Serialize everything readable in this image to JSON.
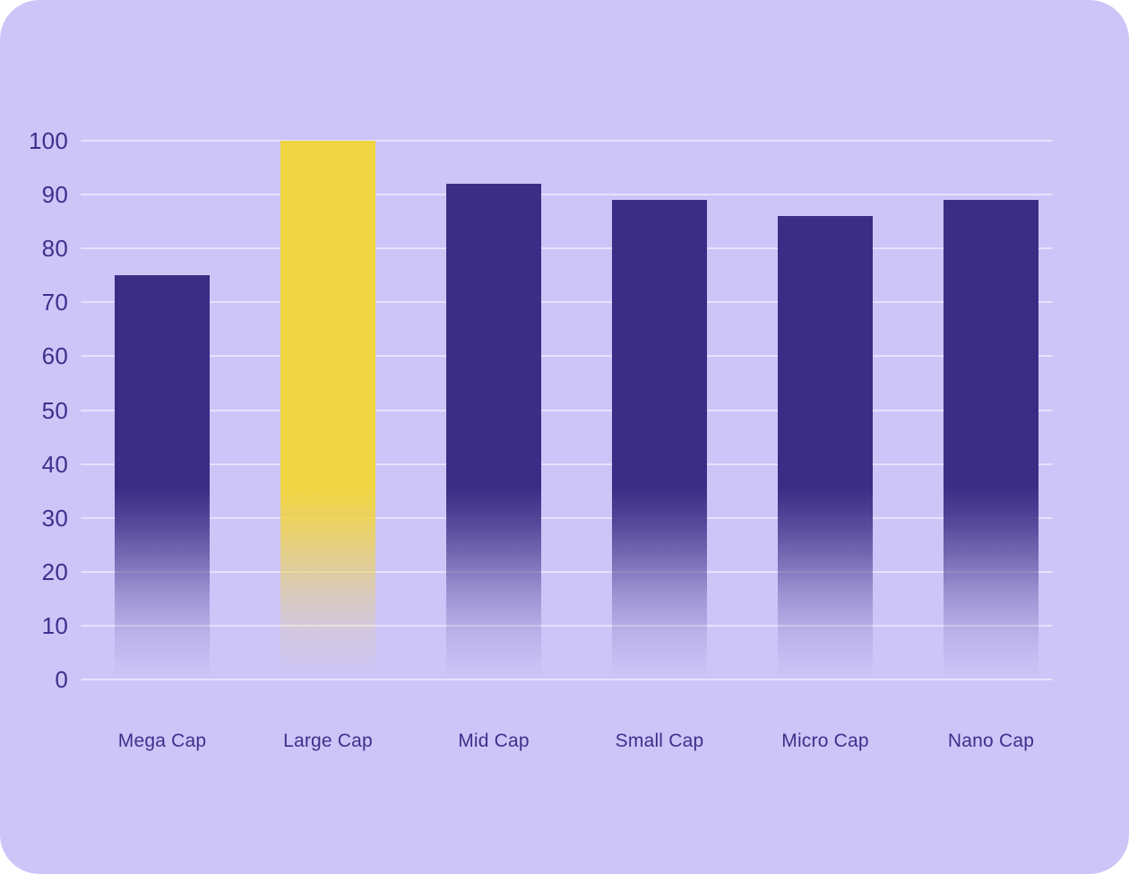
{
  "chart_data": {
    "type": "bar",
    "categories": [
      "Mega Cap",
      "Large Cap",
      "Mid Cap",
      "Small Cap",
      "Micro Cap",
      "Nano Cap"
    ],
    "values": [
      75,
      100,
      92,
      89,
      86,
      89
    ],
    "highlight_index": 1,
    "title": "",
    "xlabel": "",
    "ylabel": "",
    "ylim": [
      0,
      100
    ],
    "ytick_step": 10,
    "ytick_labels": [
      "0",
      "10",
      "20",
      "30",
      "40",
      "50",
      "60",
      "70",
      "80",
      "90",
      "100"
    ],
    "grid": true,
    "legend": "none",
    "colors": {
      "background": "#CDC5F8",
      "bar": "#3B2C85",
      "bar_highlight": "#F1D442",
      "axis_text": "#3F2F8C",
      "gridline": "rgba(255,255,255,0.5)"
    },
    "style": {
      "bar_fade_to_transparent_at_baseline": true
    }
  }
}
